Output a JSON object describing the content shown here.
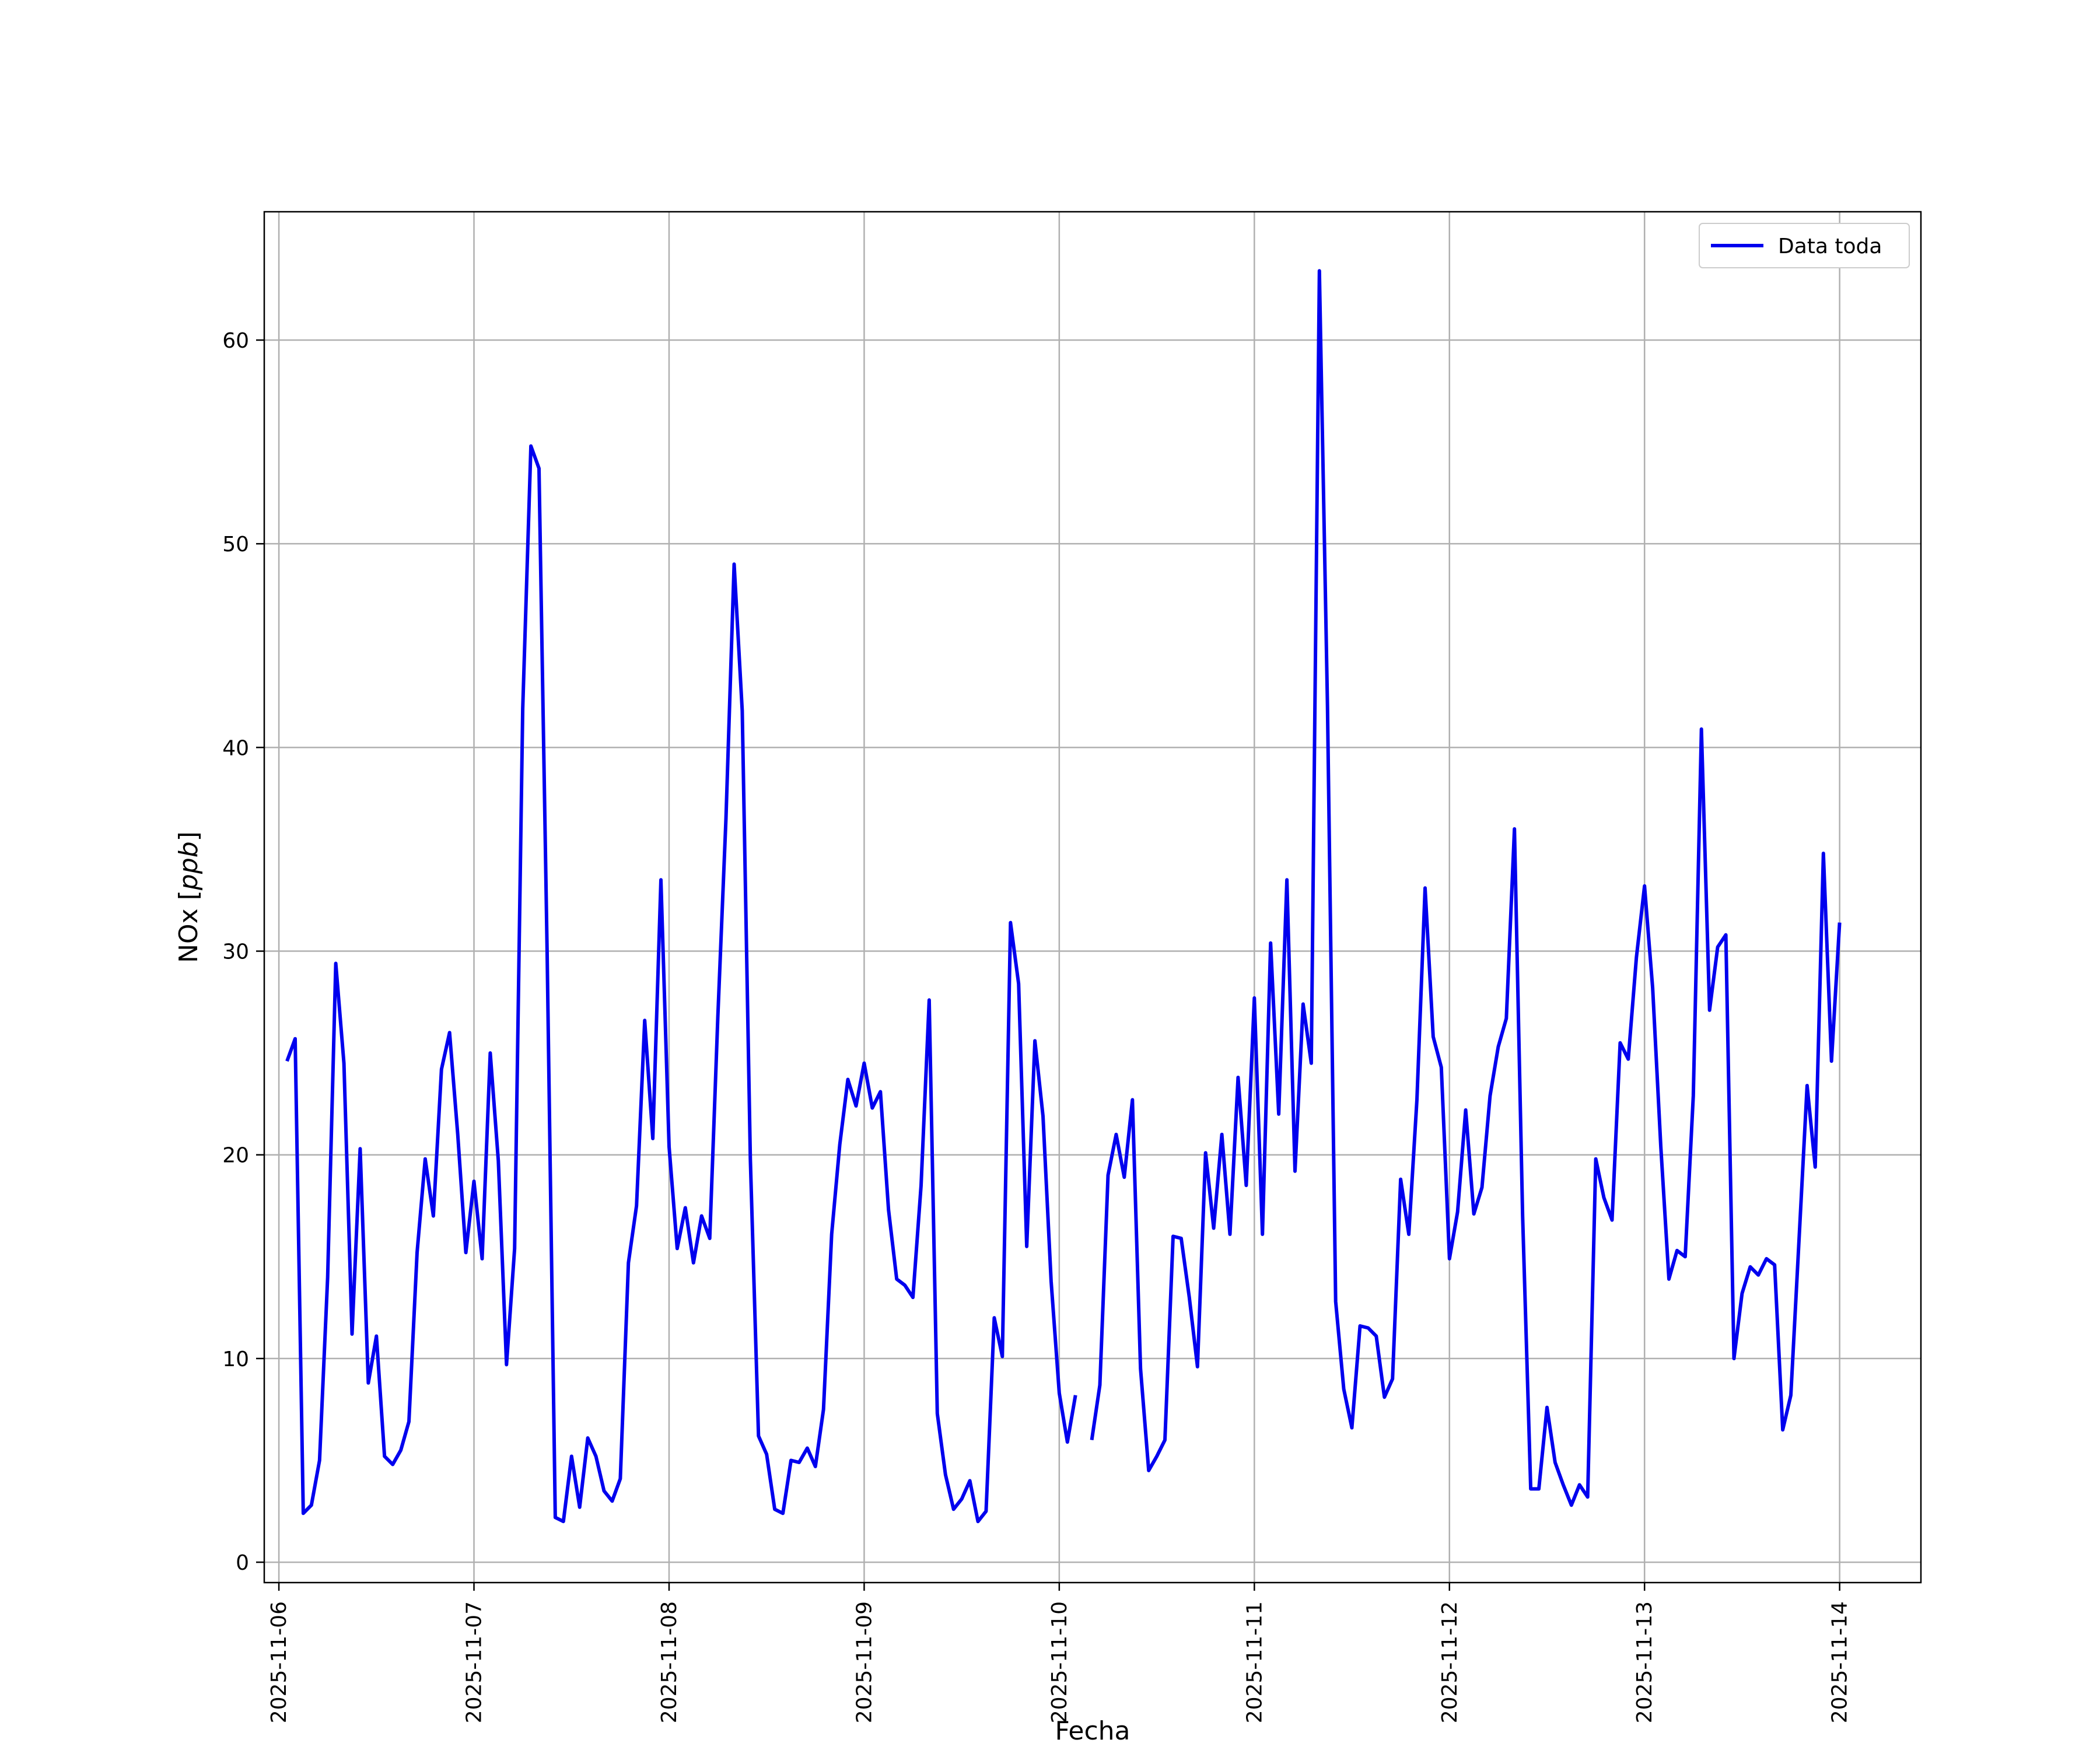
{
  "chart_data": {
    "type": "line",
    "xlabel": "Fecha",
    "ylabel_main": "NOx",
    "ylabel_unit": "ppb",
    "x_range": [
      "2025-11-05T22:12",
      "2025-11-14T10:00"
    ],
    "ylim": [
      -1,
      66.3
    ],
    "grid": true,
    "legend_position": "top-right",
    "x_ticks": [
      "2025-11-06",
      "2025-11-07",
      "2025-11-08",
      "2025-11-09",
      "2025-11-10",
      "2025-11-11",
      "2025-11-12",
      "2025-11-13",
      "2025-11-14"
    ],
    "y_ticks": [
      0,
      10,
      20,
      30,
      40,
      50,
      60
    ],
    "colors": {
      "line": "#0000ee",
      "grid": "#b0b0b0",
      "frame": "#000000"
    },
    "series": [
      {
        "name": "Data toda",
        "x": [
          "2025-11-06T01:00",
          "2025-11-06T02:00",
          "2025-11-06T03:00",
          "2025-11-06T04:00",
          "2025-11-06T05:00",
          "2025-11-06T06:00",
          "2025-11-06T07:00",
          "2025-11-06T08:00",
          "2025-11-06T09:00",
          "2025-11-06T10:00",
          "2025-11-06T11:00",
          "2025-11-06T12:00",
          "2025-11-06T13:00",
          "2025-11-06T14:00",
          "2025-11-06T15:00",
          "2025-11-06T16:00",
          "2025-11-06T17:00",
          "2025-11-06T18:00",
          "2025-11-06T19:00",
          "2025-11-06T20:00",
          "2025-11-06T21:00",
          "2025-11-06T22:00",
          "2025-11-06T23:00",
          "2025-11-07T00:00",
          "2025-11-07T01:00",
          "2025-11-07T02:00",
          "2025-11-07T03:00",
          "2025-11-07T04:00",
          "2025-11-07T05:00",
          "2025-11-07T06:00",
          "2025-11-07T07:00",
          "2025-11-07T08:00",
          "2025-11-07T09:00",
          "2025-11-07T10:00",
          "2025-11-07T11:00",
          "2025-11-07T12:00",
          "2025-11-07T13:00",
          "2025-11-07T14:00",
          "2025-11-07T15:00",
          "2025-11-07T16:00",
          "2025-11-07T17:00",
          "2025-11-07T18:00",
          "2025-11-07T19:00",
          "2025-11-07T20:00",
          "2025-11-07T21:00",
          "2025-11-07T22:00",
          "2025-11-07T23:00",
          "2025-11-08T00:00",
          "2025-11-08T01:00",
          "2025-11-08T02:00",
          "2025-11-08T03:00",
          "2025-11-08T04:00",
          "2025-11-08T05:00",
          "2025-11-08T06:00",
          "2025-11-08T07:00",
          "2025-11-08T08:00",
          "2025-11-08T09:00",
          "2025-11-08T10:00",
          "2025-11-08T11:00",
          "2025-11-08T12:00",
          "2025-11-08T13:00",
          "2025-11-08T14:00",
          "2025-11-08T15:00",
          "2025-11-08T16:00",
          "2025-11-08T17:00",
          "2025-11-08T18:00",
          "2025-11-08T19:00",
          "2025-11-08T20:00",
          "2025-11-08T21:00",
          "2025-11-08T22:00",
          "2025-11-08T23:00",
          "2025-11-09T00:00",
          "2025-11-09T01:00",
          "2025-11-09T02:00",
          "2025-11-09T03:00",
          "2025-11-09T04:00",
          "2025-11-09T05:00",
          "2025-11-09T06:00",
          "2025-11-09T07:00",
          "2025-11-09T08:00",
          "2025-11-09T09:00",
          "2025-11-09T10:00",
          "2025-11-09T11:00",
          "2025-11-09T12:00",
          "2025-11-09T13:00",
          "2025-11-09T14:00",
          "2025-11-09T15:00",
          "2025-11-09T16:00",
          "2025-11-09T17:00",
          "2025-11-09T18:00",
          "2025-11-09T19:00",
          "2025-11-09T20:00",
          "2025-11-09T21:00",
          "2025-11-09T22:00",
          "2025-11-09T23:00",
          "2025-11-10T00:00",
          "2025-11-10T01:00",
          "2025-11-10T02:00",
          "2025-11-10T04:00",
          "2025-11-10T05:00",
          "2025-11-10T06:00",
          "2025-11-10T07:00",
          "2025-11-10T08:00",
          "2025-11-10T09:00",
          "2025-11-10T10:00",
          "2025-11-10T11:00",
          "2025-11-10T12:00",
          "2025-11-10T13:00",
          "2025-11-10T14:00",
          "2025-11-10T15:00",
          "2025-11-10T16:00",
          "2025-11-10T17:00",
          "2025-11-10T18:00",
          "2025-11-10T19:00",
          "2025-11-10T20:00",
          "2025-11-10T21:00",
          "2025-11-10T22:00",
          "2025-11-10T23:00",
          "2025-11-11T00:00",
          "2025-11-11T01:00",
          "2025-11-11T02:00",
          "2025-11-11T03:00",
          "2025-11-11T04:00",
          "2025-11-11T05:00",
          "2025-11-11T06:00",
          "2025-11-11T07:00",
          "2025-11-11T08:00",
          "2025-11-11T09:00",
          "2025-11-11T10:00",
          "2025-11-11T11:00",
          "2025-11-11T12:00",
          "2025-11-11T13:00",
          "2025-11-11T14:00",
          "2025-11-11T15:00",
          "2025-11-11T16:00",
          "2025-11-11T17:00",
          "2025-11-11T18:00",
          "2025-11-11T19:00",
          "2025-11-11T20:00",
          "2025-11-11T21:00",
          "2025-11-11T22:00",
          "2025-11-11T23:00",
          "2025-11-12T00:00",
          "2025-11-12T01:00",
          "2025-11-12T02:00",
          "2025-11-12T03:00",
          "2025-11-12T04:00",
          "2025-11-12T05:00",
          "2025-11-12T06:00",
          "2025-11-12T07:00",
          "2025-11-12T08:00",
          "2025-11-12T09:00",
          "2025-11-12T10:00",
          "2025-11-12T11:00",
          "2025-11-12T12:00",
          "2025-11-12T13:00",
          "2025-11-12T14:00",
          "2025-11-12T15:00",
          "2025-11-12T16:00",
          "2025-11-12T17:00",
          "2025-11-12T18:00",
          "2025-11-12T19:00",
          "2025-11-12T20:00",
          "2025-11-12T21:00",
          "2025-11-12T22:00",
          "2025-11-12T23:00",
          "2025-11-13T00:00",
          "2025-11-13T01:00",
          "2025-11-13T02:00",
          "2025-11-13T03:00",
          "2025-11-13T04:00",
          "2025-11-13T05:00",
          "2025-11-13T06:00",
          "2025-11-13T07:00",
          "2025-11-13T08:00",
          "2025-11-13T09:00",
          "2025-11-13T10:00",
          "2025-11-13T11:00",
          "2025-11-13T12:00",
          "2025-11-13T13:00",
          "2025-11-13T14:00",
          "2025-11-13T15:00",
          "2025-11-13T16:00",
          "2025-11-13T17:00",
          "2025-11-13T18:00",
          "2025-11-13T19:00",
          "2025-11-13T20:00",
          "2025-11-13T21:00",
          "2025-11-13T22:00",
          "2025-11-13T23:00",
          "2025-11-14T00:00"
        ],
        "y": [
          24.6,
          25.7,
          2.4,
          2.8,
          5.0,
          14.0,
          29.4,
          24.5,
          11.2,
          20.3,
          8.8,
          11.1,
          5.2,
          4.8,
          5.5,
          6.9,
          15.2,
          19.8,
          17.0,
          24.2,
          26.0,
          21.0,
          15.2,
          18.7,
          14.9,
          25.0,
          19.7,
          9.7,
          15.4,
          41.9,
          54.8,
          53.7,
          30.0,
          2.2,
          2.0,
          5.2,
          2.7,
          6.1,
          5.2,
          3.5,
          3.0,
          4.1,
          14.7,
          17.5,
          26.6,
          20.8,
          33.5,
          20.4,
          15.4,
          17.4,
          14.7,
          17.0,
          15.9,
          26.8,
          36.5,
          49.0,
          41.8,
          19.8,
          6.2,
          5.3,
          2.6,
          2.4,
          5.0,
          4.9,
          5.6,
          4.7,
          7.5,
          16.1,
          20.5,
          23.7,
          22.4,
          24.5,
          22.3,
          23.1,
          17.3,
          13.9,
          13.6,
          13.0,
          18.5,
          27.6,
          7.3,
          4.3,
          2.6,
          3.1,
          4.0,
          2.0,
          2.5,
          12.0,
          10.1,
          31.4,
          28.4,
          15.5,
          25.6,
          21.9,
          13.8,
          8.3,
          5.9,
          8.2,
          6.0,
          8.7,
          19.0,
          21.0,
          18.9,
          22.7,
          9.5,
          4.5,
          5.2,
          6.0,
          16.0,
          15.9,
          13.0,
          9.6,
          20.1,
          16.4,
          21.0,
          16.1,
          23.8,
          18.5,
          27.7,
          16.1,
          30.4,
          22.0,
          33.5,
          19.2,
          27.4,
          24.5,
          63.4,
          42.0,
          12.8,
          8.5,
          6.6,
          11.6,
          11.5,
          11.1,
          8.1,
          9.0,
          18.8,
          16.1,
          22.7,
          33.1,
          25.8,
          24.3,
          14.9,
          17.2,
          22.2,
          17.1,
          18.4,
          22.9,
          25.3,
          26.7,
          36.0,
          17.0,
          3.6,
          3.6,
          7.6,
          4.9,
          3.8,
          2.8,
          3.8,
          3.2,
          19.8,
          17.9,
          16.8,
          25.5,
          24.7,
          29.7,
          33.2,
          28.2,
          20.4,
          13.9,
          15.3,
          15.0,
          22.9,
          40.9,
          27.1,
          30.2,
          30.8,
          10.0,
          13.2,
          14.5,
          14.1,
          14.9,
          14.6,
          6.5,
          8.2,
          15.8,
          23.4,
          19.4,
          34.8,
          24.6,
          31.4
        ],
        "breaks_after": [
          "2025-11-10T02:00"
        ]
      }
    ]
  }
}
